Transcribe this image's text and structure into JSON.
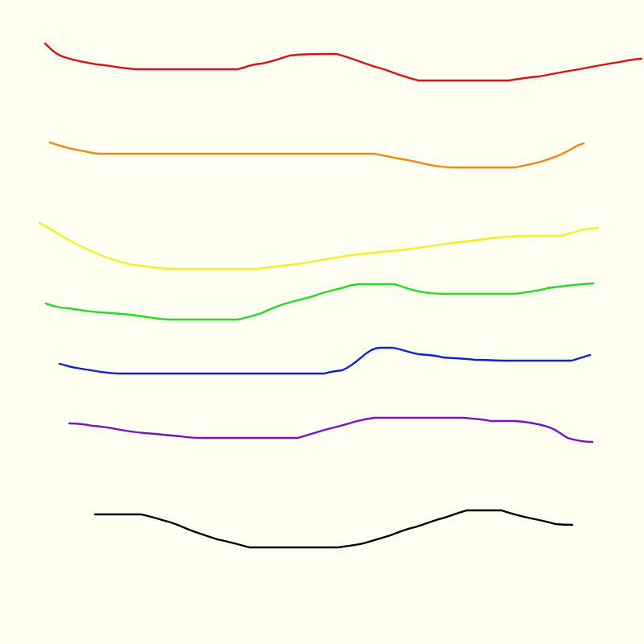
{
  "background": "#fffff2",
  "strokes": [
    {
      "name": "red-stroke",
      "color": "#dd1111"
    },
    {
      "name": "orange-stroke",
      "color": "#ee8811"
    },
    {
      "name": "yellow-stroke",
      "color": "#f5ee22"
    },
    {
      "name": "green-stroke",
      "color": "#22dd22"
    },
    {
      "name": "blue-stroke",
      "color": "#1122cc"
    },
    {
      "name": "purple-stroke",
      "color": "#7711cc"
    },
    {
      "name": "black-stroke",
      "color": "#000000"
    }
  ]
}
